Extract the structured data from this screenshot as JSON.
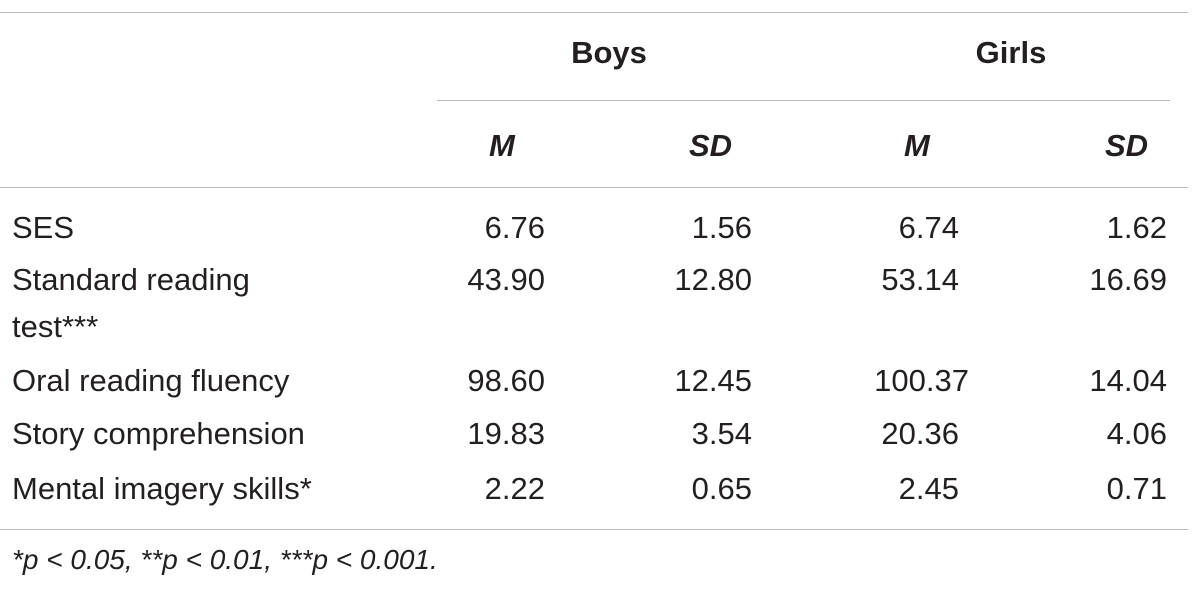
{
  "table": {
    "group_headers": [
      "Boys",
      "Girls"
    ],
    "sub_headers": [
      "M",
      "SD",
      "M",
      "SD"
    ],
    "rows": [
      {
        "label": [
          "SES"
        ],
        "values": [
          "6.76",
          "1.56",
          "6.74",
          "1.62"
        ]
      },
      {
        "label": [
          "Standard reading",
          "test***"
        ],
        "values": [
          "43.90",
          "12.80",
          "53.14",
          "16.69"
        ]
      },
      {
        "label": [
          "Oral reading fluency"
        ],
        "values": [
          "98.60",
          "12.45",
          "100.37",
          "14.04"
        ]
      },
      {
        "label": [
          "Story comprehension"
        ],
        "values": [
          "19.83",
          "3.54",
          "20.36",
          "4.06"
        ]
      },
      {
        "label": [
          "Mental imagery skills*"
        ],
        "values": [
          "2.22",
          "0.65",
          "2.45",
          "0.71"
        ]
      }
    ],
    "footnote": "*p < 0.05, **p < 0.01, ***p < 0.001."
  }
}
